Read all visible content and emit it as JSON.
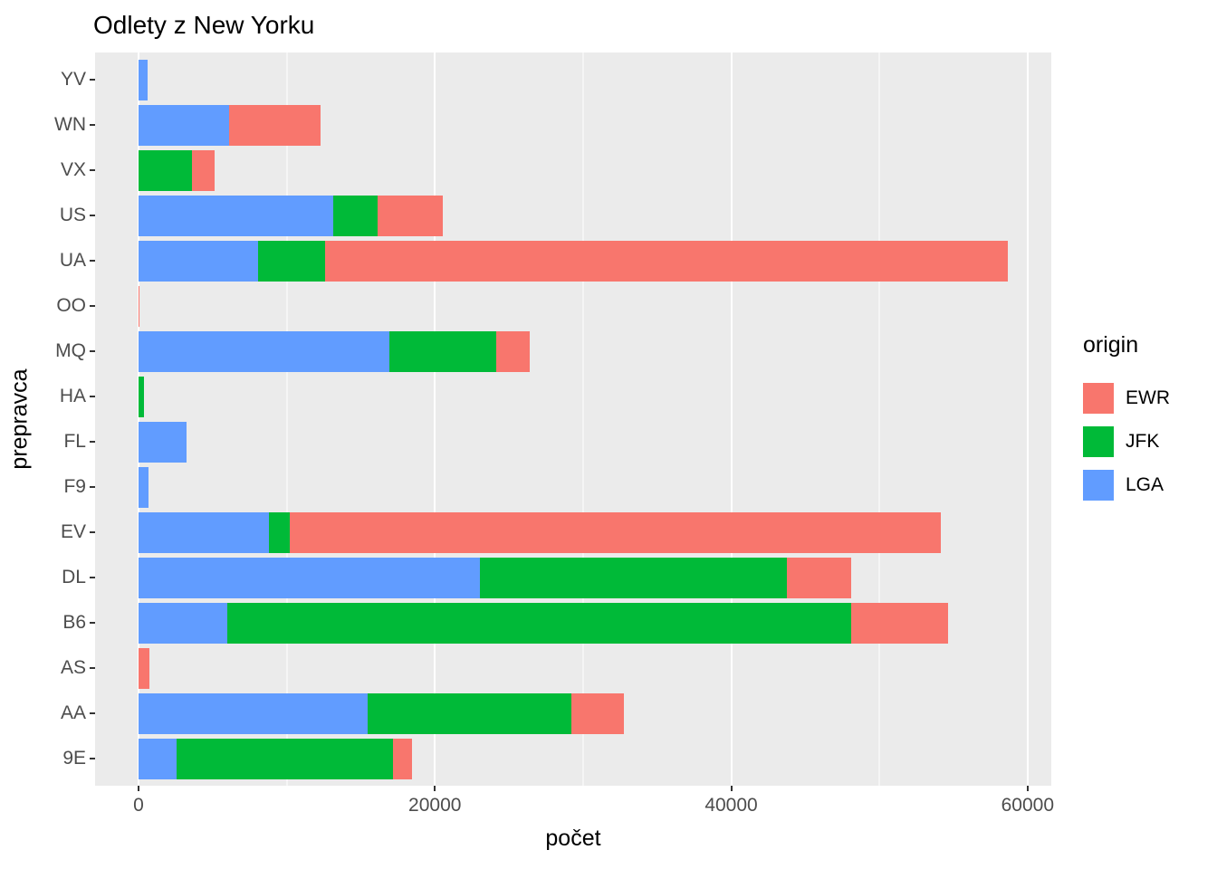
{
  "title": "Odlety z New Yorku",
  "axes": {
    "x_label": "počet",
    "y_label": "prepravca",
    "x_tick_labels": [
      "0",
      "20000",
      "40000",
      "60000"
    ]
  },
  "legend": {
    "title": "origin",
    "entries": [
      {
        "label": "EWR",
        "color": "#F8766D"
      },
      {
        "label": "JFK",
        "color": "#00BA38"
      },
      {
        "label": "LGA",
        "color": "#619CFF"
      }
    ]
  },
  "chart_data": {
    "type": "bar",
    "orientation": "horizontal",
    "stacked": true,
    "title": "Odlety z New Yorku",
    "xlabel": "počet",
    "ylabel": "prepravca",
    "categories": [
      "YV",
      "WN",
      "VX",
      "US",
      "UA",
      "OO",
      "MQ",
      "HA",
      "FL",
      "F9",
      "EV",
      "DL",
      "B6",
      "AS",
      "AA",
      "9E"
    ],
    "categories_order": "top-to-bottom",
    "stack_order_from_axis": [
      "LGA",
      "JFK",
      "EWR"
    ],
    "series": [
      {
        "name": "EWR",
        "color": "#F8766D",
        "values": [
          0,
          6188,
          1566,
          4405,
          46087,
          6,
          2276,
          0,
          0,
          0,
          43939,
          4342,
          6557,
          714,
          3487,
          1268
        ]
      },
      {
        "name": "JFK",
        "color": "#00BA38",
        "values": [
          0,
          0,
          3596,
          2995,
          4534,
          0,
          7193,
          342,
          0,
          0,
          1408,
          20701,
          42076,
          0,
          13783,
          14651
        ]
      },
      {
        "name": "LGA",
        "color": "#619CFF",
        "values": [
          601,
          6087,
          0,
          13136,
          8044,
          26,
          16928,
          0,
          3260,
          685,
          8826,
          23067,
          6002,
          0,
          15459,
          2541
        ]
      }
    ],
    "x_tick_values": [
      0,
      20000,
      40000,
      60000
    ],
    "x_minor_tick_values": [
      10000,
      30000,
      50000
    ],
    "xlim": [
      -2930,
      61600
    ],
    "bar_relative_width": 0.9,
    "panel_background": "#EBEBEB",
    "gridline_color": "#FFFFFF",
    "legend_position": "right",
    "grid": true
  }
}
